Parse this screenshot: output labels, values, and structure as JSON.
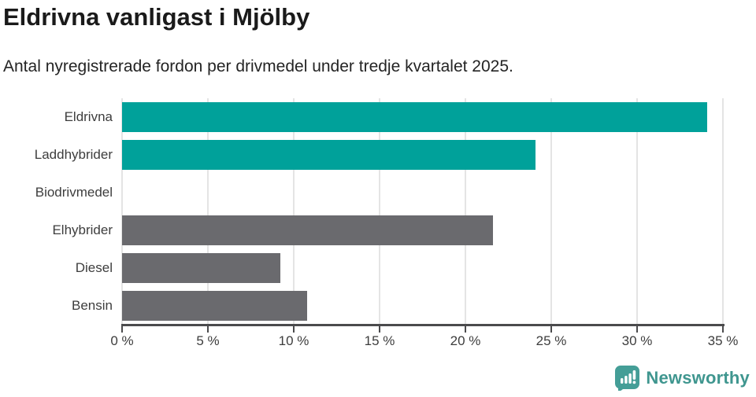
{
  "header": {
    "title": "Eldrivna vanligast i Mjölby",
    "subtitle": "Antal nyregistrerade fordon per drivmedel under tredje kvartalet 2025."
  },
  "chart_data": {
    "type": "bar",
    "orientation": "horizontal",
    "title": "Eldrivna vanligast i Mjölby",
    "subtitle": "Antal nyregistrerade fordon per drivmedel under tredje kvartalet 2025.",
    "categories": [
      "Eldrivna",
      "Laddhybrider",
      "Biodrivmedel",
      "Elhybrider",
      "Diesel",
      "Bensin"
    ],
    "values": [
      34.1,
      24.1,
      0,
      21.6,
      9.2,
      10.8
    ],
    "unit": "%",
    "bar_colors": [
      "#00a19a",
      "#00a19a",
      "#00a19a",
      "#6a6a6e",
      "#6a6a6e",
      "#6a6a6e"
    ],
    "xlim": [
      0,
      35
    ],
    "x_tick_step": 5,
    "x_tick_labels": [
      "0 %",
      "5 %",
      "10 %",
      "15 %",
      "20 %",
      "25 %",
      "30 %",
      "35 %"
    ],
    "xlabel": "",
    "ylabel": "",
    "grid": "vertical-only",
    "legend": "none"
  },
  "footer": {
    "brand": "Newsworthy"
  },
  "colors": {
    "accent_teal": "#00a19a",
    "neutral_gray": "#6a6a6e",
    "logo_teal": "#449e97",
    "gridline": "#e4e4e4",
    "axis": "#4b4b4d",
    "title_text": "#1a1a1a",
    "label_text": "#3d3d3d"
  }
}
